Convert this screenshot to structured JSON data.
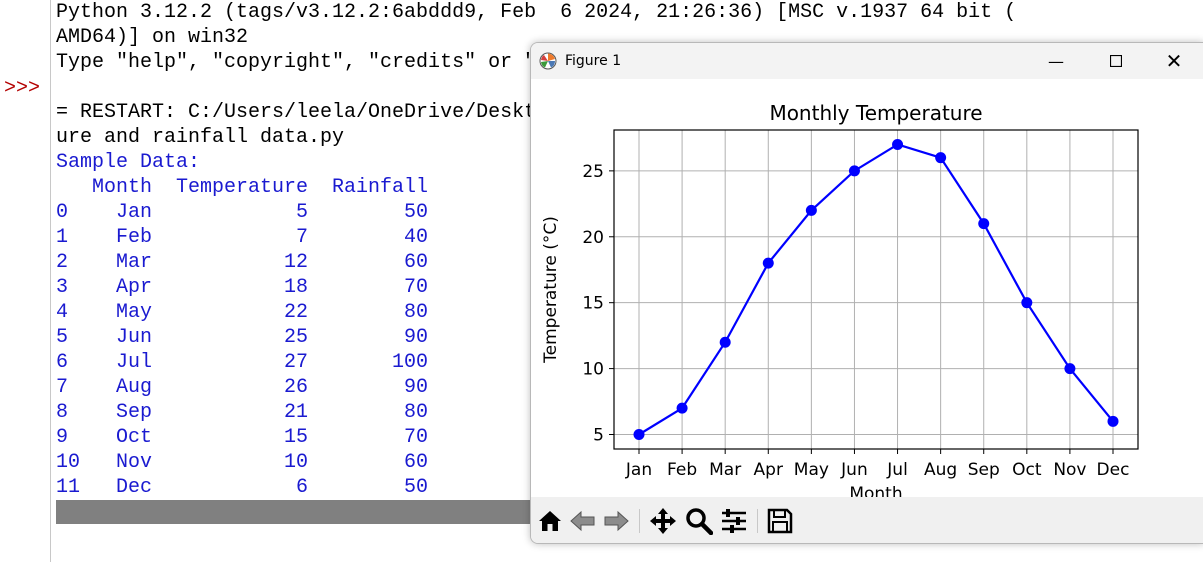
{
  "shell": {
    "prompt": ">>>",
    "lines": [
      {
        "text": "Python 3.12.2 (tags/v3.12.2:6abddd9, Feb  6 2024, 21:26:36) [MSC v.1937 64 bit (",
        "color": "black"
      },
      {
        "text": "AMD64)] on win32",
        "color": "black"
      },
      {
        "text": "Type \"help\", \"copyright\", \"credits\" or \"license()\" for more information.",
        "color": "black"
      },
      {
        "text": "",
        "color": "black"
      },
      {
        "text": "= RESTART: C:/Users/leela/OneDrive/Desktop/monthly temperature and rainfall data.py",
        "color": "black"
      },
      {
        "text": "ure and rainfall data.py",
        "color": "black"
      },
      {
        "text": "Sample Data:",
        "color": "blue"
      },
      {
        "text": "   Month  Temperature  Rainfall",
        "color": "blue"
      },
      {
        "text": "0    Jan            5        50",
        "color": "blue"
      },
      {
        "text": "1    Feb            7        40",
        "color": "blue"
      },
      {
        "text": "2    Mar           12        60",
        "color": "blue"
      },
      {
        "text": "3    Apr           18        70",
        "color": "blue"
      },
      {
        "text": "4    May           22        80",
        "color": "blue"
      },
      {
        "text": "5    Jun           25        90",
        "color": "blue"
      },
      {
        "text": "6    Jul           27       100",
        "color": "blue"
      },
      {
        "text": "7    Aug           26        90",
        "color": "blue"
      },
      {
        "text": "8    Sep           21        80",
        "color": "blue"
      },
      {
        "text": "9    Oct           15        70",
        "color": "blue"
      },
      {
        "text": "10   Nov           10        60",
        "color": "blue"
      },
      {
        "text": "11   Dec            6        50",
        "color": "blue"
      }
    ],
    "colors": {
      "black": "#000000",
      "blue": "#1a1ad0"
    }
  },
  "figure": {
    "window_title": "Figure 1",
    "minimize_label": "—",
    "close_label": "✕",
    "toolbar_icons": [
      "home-icon",
      "back-arrow-icon",
      "forward-arrow-icon",
      "pan-icon",
      "zoom-icon",
      "configure-subplots-icon",
      "save-icon"
    ]
  },
  "chart_data": {
    "type": "line",
    "title": "Monthly Temperature",
    "xlabel": "Month",
    "ylabel": "Temperature (°C)",
    "categories": [
      "Jan",
      "Feb",
      "Mar",
      "Apr",
      "May",
      "Jun",
      "Jul",
      "Aug",
      "Sep",
      "Oct",
      "Nov",
      "Dec"
    ],
    "series": [
      {
        "values": [
          5,
          7,
          12,
          18,
          22,
          25,
          27,
          26,
          21,
          15,
          10,
          6
        ],
        "color": "#0000ff",
        "marker": "circle"
      }
    ],
    "yticks": [
      "5",
      "10",
      "15",
      "20",
      "25"
    ],
    "ylim": [
      3.9,
      28.1
    ],
    "grid": true
  }
}
